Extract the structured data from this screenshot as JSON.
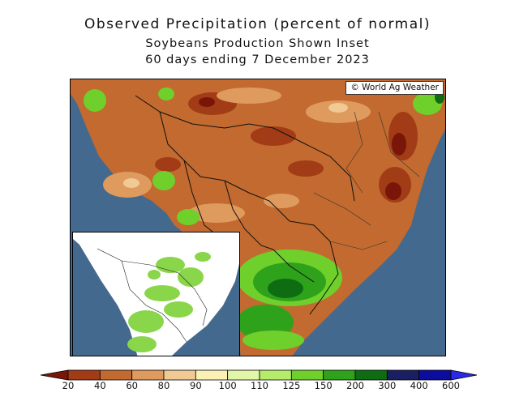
{
  "header": {
    "title": "Observed Precipitation (percent of normal)",
    "subtitle": "Soybeans Production Shown Inset",
    "period": "60 days ending 7 December 2023"
  },
  "map": {
    "credit": "© World Ag Weather",
    "ocean_color": "#44698e",
    "base_color": "#c26a2f"
  },
  "inset": {
    "background": "#ffffff",
    "production_color": "#8ad64a"
  },
  "legend": {
    "labels": [
      "20",
      "40",
      "60",
      "80",
      "90",
      "100",
      "110",
      "125",
      "150",
      "200",
      "300",
      "400",
      "600"
    ],
    "colors": [
      "#7a1509",
      "#a13c16",
      "#c26a2f",
      "#df9a5e",
      "#f0c994",
      "#fbf1b4",
      "#e1f7a7",
      "#b5ec6a",
      "#6fd02c",
      "#2fa21c",
      "#0e6d12",
      "#1a1f63",
      "#0c0c9e",
      "#2a2ae6"
    ]
  }
}
